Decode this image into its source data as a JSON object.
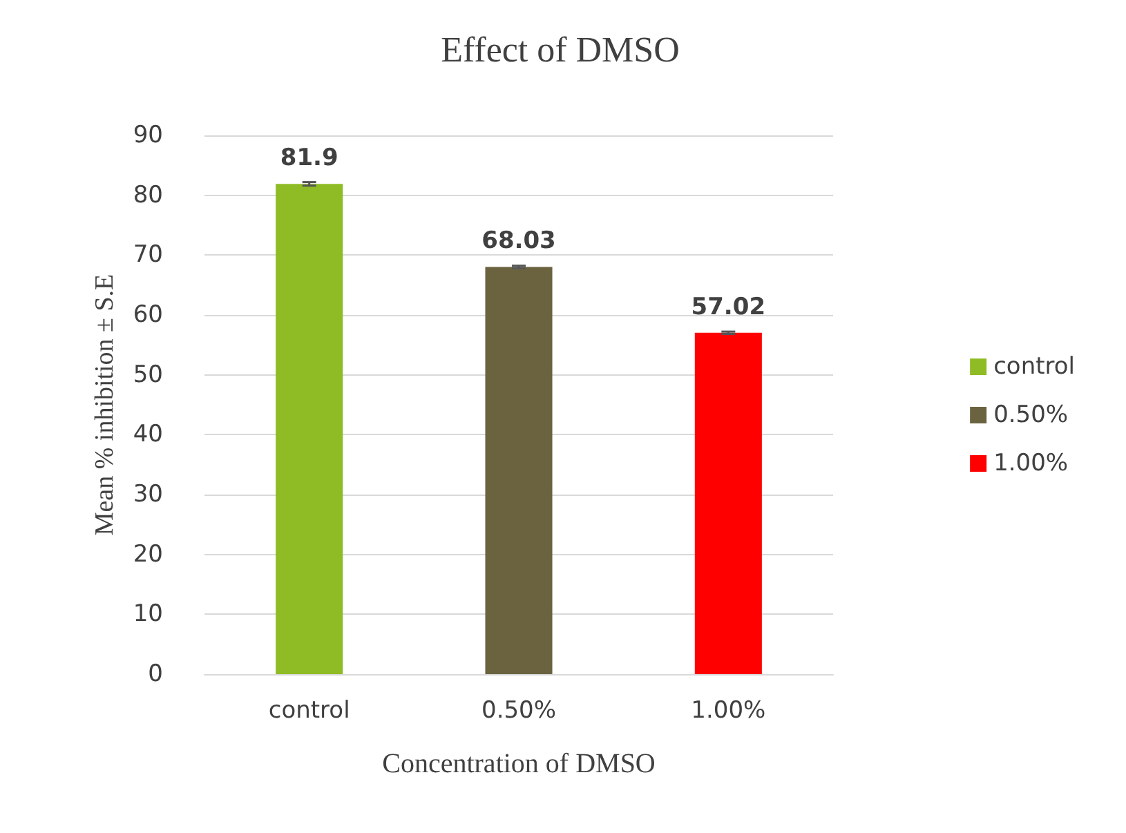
{
  "chart_data": {
    "type": "bar",
    "title": "Effect of DMSO",
    "xlabel": "Concentration of DMSO",
    "ylabel": "Mean % inhibition ± S.E",
    "categories": [
      "control",
      "0.50%",
      "1.00%"
    ],
    "series": [
      {
        "name": "control",
        "color": "#8fbc24",
        "values": [
          81.9,
          null,
          null
        ],
        "errors": [
          0.3,
          null,
          null
        ]
      },
      {
        "name": "0.50%",
        "color": "#6b6340",
        "values": [
          null,
          68.03,
          null
        ],
        "errors": [
          null,
          0.2,
          null
        ]
      },
      {
        "name": "1.00%",
        "color": "#ff0000",
        "values": [
          null,
          null,
          57.02
        ],
        "errors": [
          null,
          null,
          0.2
        ]
      }
    ],
    "ylim": [
      0,
      90
    ],
    "yticks": [
      0,
      10,
      20,
      30,
      40,
      50,
      60,
      70,
      80,
      90
    ],
    "grid": "y",
    "legend": "right",
    "data_labels": true
  }
}
